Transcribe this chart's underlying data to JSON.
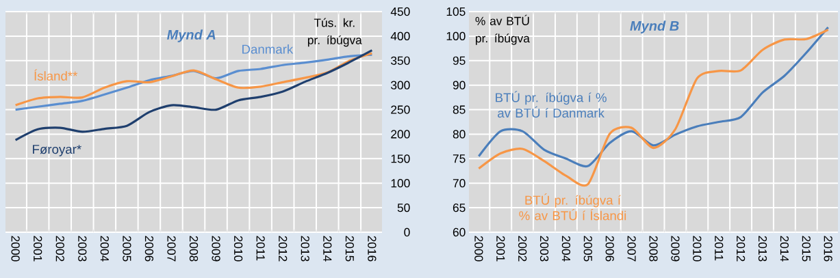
{
  "chart_data": [
    {
      "type": "line",
      "title": "Mynd A",
      "ylabel": "Tús. kr. pr. íbúgva",
      "categories": [
        "2000",
        "2001",
        "2002",
        "2003",
        "2004",
        "2005",
        "2006",
        "2007",
        "2008",
        "2009",
        "2010",
        "2011",
        "2012",
        "2013",
        "2014",
        "2015",
        "2016"
      ],
      "series": [
        {
          "name": "Danmark",
          "color": "#5a8ed0",
          "values": [
            250,
            256,
            262,
            268,
            281,
            295,
            310,
            319,
            329,
            314,
            329,
            333,
            341,
            346,
            352,
            359,
            362
          ]
        },
        {
          "name": "Ísland**",
          "color": "#f79646",
          "values": [
            259,
            273,
            276,
            275,
            295,
            308,
            306,
            318,
            330,
            312,
            295,
            297,
            306,
            315,
            326,
            350,
            365
          ]
        },
        {
          "name": "Føroyar*",
          "color": "#1f3f6e",
          "values": [
            188,
            210,
            213,
            205,
            211,
            217,
            245,
            259,
            255,
            250,
            269,
            276,
            287,
            307,
            325,
            347,
            371
          ]
        }
      ],
      "ylim": [
        0,
        450
      ],
      "yticks": [
        0,
        50,
        100,
        150,
        200,
        250,
        300,
        350,
        400,
        450
      ],
      "grid": true
    },
    {
      "type": "line",
      "title": "Mynd B",
      "ylabel": "% av BTÚ pr. íbúgva",
      "categories": [
        "2000",
        "2001",
        "2002",
        "2003",
        "2004",
        "2005",
        "2006",
        "2007",
        "2008",
        "2009",
        "2010",
        "2011",
        "2012",
        "2013",
        "2014",
        "2015",
        "2016"
      ],
      "series": [
        {
          "name": "BTÚ pr. íbúgva í % av BTÚ í Danmark",
          "color": "#4a7ebb",
          "values": [
            75.5,
            80.6,
            80.6,
            76.8,
            75.0,
            73.5,
            78.2,
            80.6,
            77.7,
            79.9,
            81.6,
            82.5,
            83.5,
            88.5,
            91.9,
            96.6,
            101.8
          ]
        },
        {
          "name": "BTÚ pr. íbúgva í % av BTÚ í Íslandi",
          "color": "#f79646",
          "values": [
            73.0,
            76.1,
            77.0,
            74.5,
            71.5,
            69.8,
            80.1,
            81.3,
            77.2,
            81.0,
            91.4,
            92.9,
            93.0,
            97.2,
            99.3,
            99.4,
            101.3
          ]
        }
      ],
      "ylim": [
        60,
        105
      ],
      "yticks": [
        60,
        65,
        70,
        75,
        80,
        85,
        90,
        95,
        100,
        105
      ],
      "grid": true
    }
  ]
}
